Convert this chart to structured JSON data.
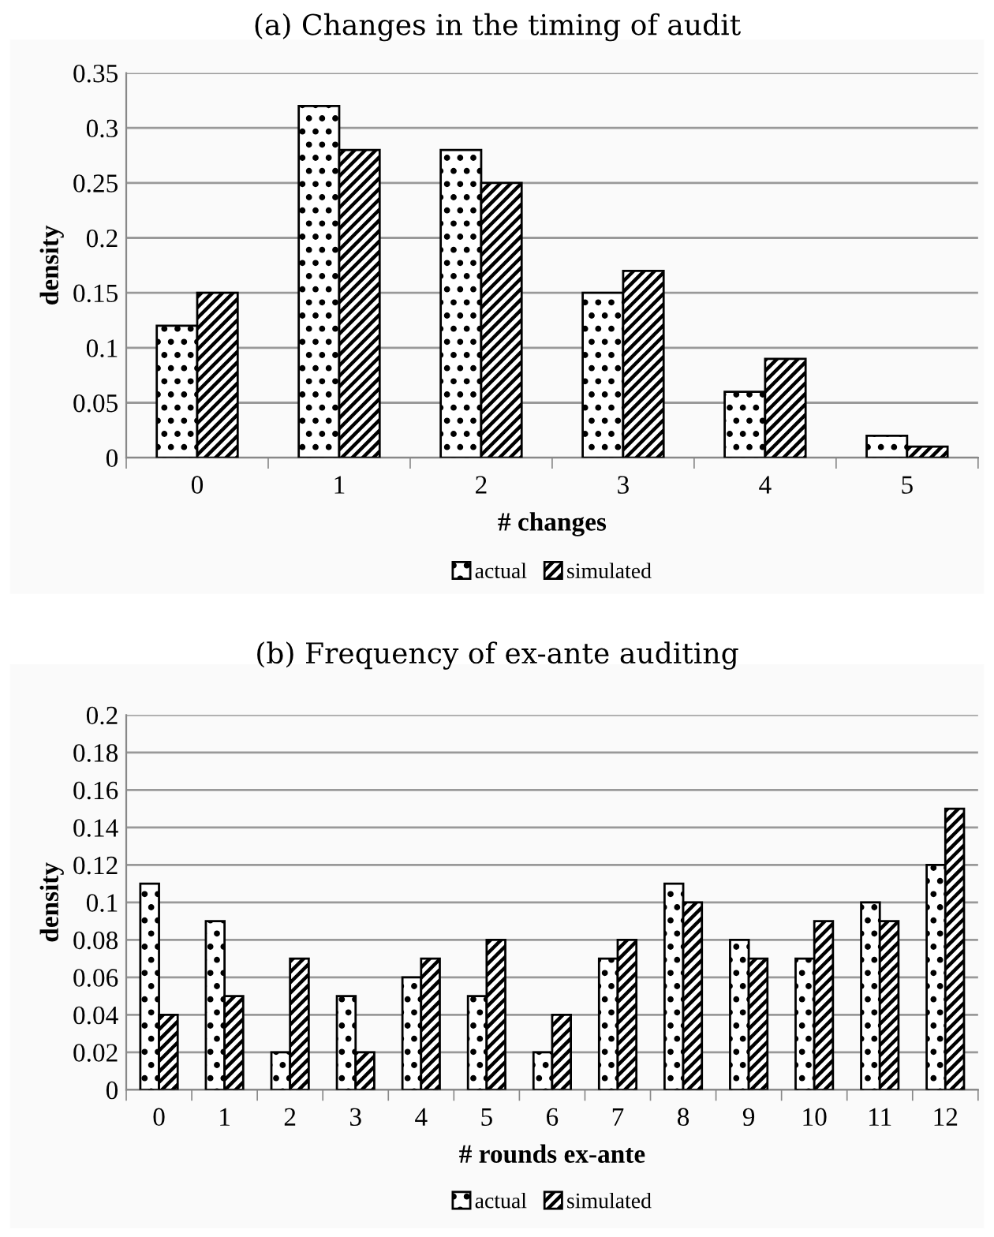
{
  "chart_data": [
    {
      "type": "bar",
      "title": "(a) Changes in the timing of audit",
      "xlabel": "# changes",
      "ylabel": "density",
      "categories": [
        "0",
        "1",
        "2",
        "3",
        "4",
        "5"
      ],
      "series": [
        {
          "name": "actual",
          "color": "#000000",
          "values": [
            0.12,
            0.32,
            0.28,
            0.15,
            0.06,
            0.02
          ]
        },
        {
          "name": "simulated",
          "color": "#000000",
          "values": [
            0.15,
            0.28,
            0.25,
            0.17,
            0.09,
            0.01
          ]
        }
      ],
      "ylim": [
        0,
        0.35
      ],
      "yticks": [
        0,
        0.05,
        0.1,
        0.15,
        0.2,
        0.25,
        0.3,
        0.35
      ],
      "grid": "y",
      "legend": "bottom"
    },
    {
      "type": "bar",
      "title": "(b) Frequency of ex-ante auditing",
      "xlabel": "# rounds ex-ante",
      "ylabel": "density",
      "categories": [
        "0",
        "1",
        "2",
        "3",
        "4",
        "5",
        "6",
        "7",
        "8",
        "9",
        "10",
        "11",
        "12"
      ],
      "series": [
        {
          "name": "actual",
          "color": "#000000",
          "values": [
            0.11,
            0.09,
            0.02,
            0.05,
            0.06,
            0.05,
            0.02,
            0.07,
            0.11,
            0.08,
            0.07,
            0.1,
            0.12
          ]
        },
        {
          "name": "simulated",
          "color": "#000000",
          "values": [
            0.04,
            0.05,
            0.07,
            0.02,
            0.07,
            0.08,
            0.04,
            0.08,
            0.1,
            0.07,
            0.09,
            0.09,
            0.15
          ]
        }
      ],
      "ylim": [
        0,
        0.2
      ],
      "yticks": [
        0,
        0.02,
        0.04,
        0.06,
        0.08,
        0.1,
        0.12,
        0.14,
        0.16,
        0.18,
        0.2
      ],
      "grid": "y",
      "legend": "bottom"
    }
  ]
}
